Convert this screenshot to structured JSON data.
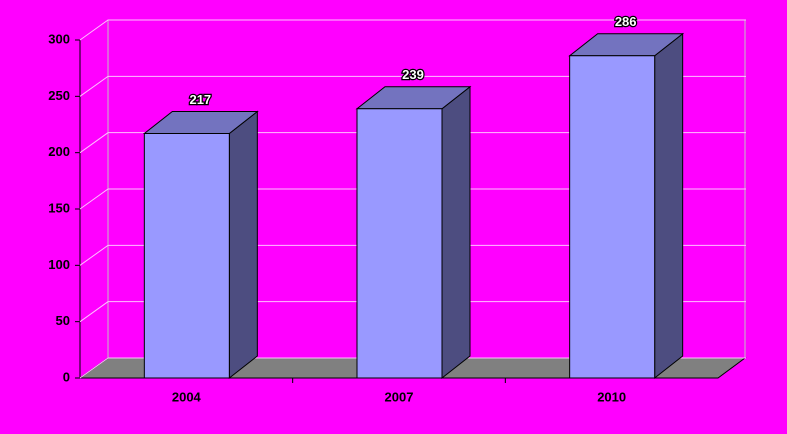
{
  "chart_data": {
    "type": "bar",
    "categories": [
      "2004",
      "2007",
      "2010"
    ],
    "values": [
      217,
      239,
      286
    ],
    "color": "#9999ff",
    "ylim": [
      0,
      300
    ],
    "yticks": [
      0,
      50,
      100,
      150,
      200,
      250,
      300
    ],
    "grid": true
  }
}
